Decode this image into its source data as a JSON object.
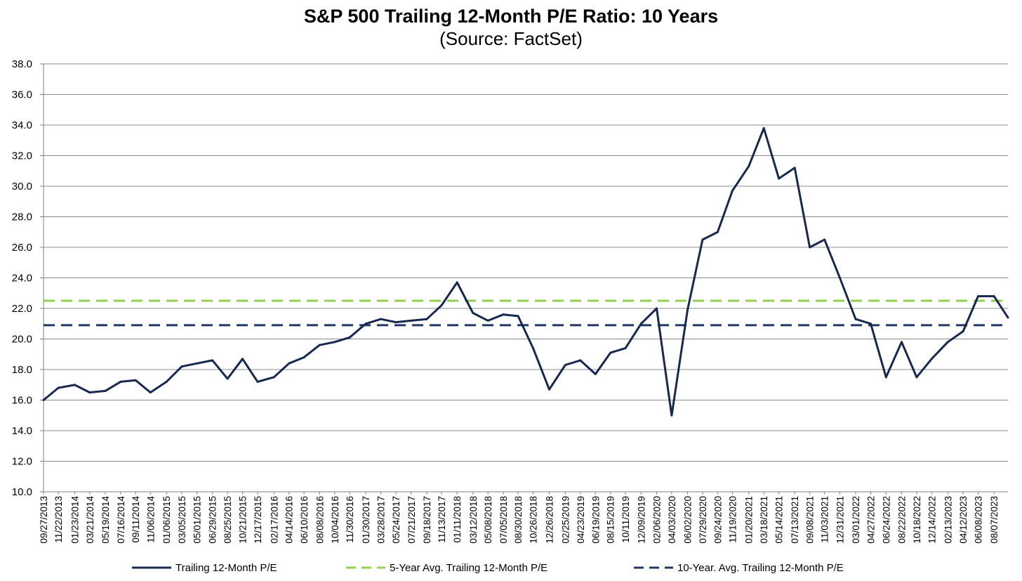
{
  "chart_data": {
    "type": "line",
    "title": "S&P 500 Trailing 12-Month P/E Ratio: 10 Years",
    "subtitle": "(Source: FactSet)",
    "ylim": [
      10,
      38
    ],
    "y_ticks": [
      "10.0",
      "12.0",
      "14.0",
      "16.0",
      "18.0",
      "20.0",
      "22.0",
      "24.0",
      "26.0",
      "28.0",
      "30.0",
      "32.0",
      "34.0",
      "36.0",
      "38.0"
    ],
    "x_tick_labels": [
      "09/27/2013",
      "11/22/2013",
      "01/23/2014",
      "03/21/2014",
      "05/19/2014",
      "07/16/2014",
      "09/11/2014",
      "11/06/2014",
      "01/06/2015",
      "03/05/2015",
      "05/01/2015",
      "06/29/2015",
      "08/25/2015",
      "10/21/2015",
      "12/17/2015",
      "02/17/2016",
      "04/14/2016",
      "06/10/2016",
      "08/08/2016",
      "10/04/2016",
      "11/30/2016",
      "01/30/2017",
      "03/28/2017",
      "05/24/2017",
      "07/21/2017",
      "09/18/2017",
      "11/13/2017",
      "01/11/2018",
      "03/12/2018",
      "05/08/2018",
      "07/05/2018",
      "08/30/2018",
      "10/26/2018",
      "12/26/2018",
      "02/25/2019",
      "04/23/2019",
      "06/19/2019",
      "08/15/2019",
      "10/11/2019",
      "12/09/2019",
      "02/06/2020",
      "04/03/2020",
      "06/02/2020",
      "07/29/2020",
      "09/24/2020",
      "11/19/2020",
      "01/20/2021",
      "03/18/2021",
      "05/14/2021",
      "07/13/2021",
      "09/08/2021",
      "11/03/2021",
      "12/31/2021",
      "03/01/2022",
      "04/27/2022",
      "06/24/2022",
      "08/22/2022",
      "10/18/2022",
      "12/14/2022",
      "02/13/2023",
      "04/12/2023",
      "06/08/2023",
      "08/07/2023"
    ],
    "grid": true,
    "legend_position": "bottom",
    "series": [
      {
        "name": "Trailing 12-Month P/E",
        "style": "solid",
        "color": "#17294f",
        "x": [
          "09/27/2013",
          "11/22/2013",
          "01/23/2014",
          "03/21/2014",
          "05/19/2014",
          "07/16/2014",
          "09/11/2014",
          "11/06/2014",
          "01/06/2015",
          "03/05/2015",
          "05/01/2015",
          "06/29/2015",
          "08/25/2015",
          "10/21/2015",
          "12/17/2015",
          "02/17/2016",
          "04/14/2016",
          "06/10/2016",
          "08/08/2016",
          "10/04/2016",
          "11/30/2016",
          "01/30/2017",
          "03/28/2017",
          "05/24/2017",
          "07/21/2017",
          "09/18/2017",
          "11/13/2017",
          "01/11/2018",
          "03/12/2018",
          "05/08/2018",
          "07/05/2018",
          "08/30/2018",
          "10/26/2018",
          "12/26/2018",
          "02/25/2019",
          "04/23/2019",
          "06/19/2019",
          "08/15/2019",
          "10/11/2019",
          "12/09/2019",
          "02/06/2020",
          "04/03/2020",
          "06/02/2020",
          "07/29/2020",
          "09/24/2020",
          "11/19/2020",
          "01/20/2021",
          "03/18/2021",
          "05/14/2021",
          "07/13/2021",
          "09/08/2021",
          "11/03/2021",
          "12/31/2021",
          "03/01/2022",
          "04/27/2022",
          "06/24/2022",
          "08/22/2022",
          "10/18/2022",
          "12/14/2022",
          "02/13/2023",
          "04/12/2023",
          "06/08/2023",
          "08/07/2023",
          "09/29/2023"
        ],
        "values": [
          16.0,
          16.8,
          17.0,
          16.5,
          16.6,
          17.2,
          17.3,
          16.5,
          17.2,
          18.2,
          18.4,
          18.6,
          17.4,
          18.7,
          17.2,
          17.5,
          18.4,
          18.8,
          19.6,
          19.8,
          20.1,
          21.0,
          21.3,
          21.1,
          21.2,
          21.3,
          22.2,
          23.7,
          21.7,
          21.2,
          21.6,
          21.5,
          19.4,
          16.7,
          18.3,
          18.6,
          17.7,
          19.1,
          19.4,
          21.0,
          22.0,
          15.0,
          21.9,
          26.5,
          27.0,
          29.7,
          31.3,
          33.8,
          30.5,
          31.2,
          26.0,
          26.5,
          24.0,
          21.3,
          21.0,
          17.5,
          19.8,
          17.5,
          18.7,
          19.8,
          20.5,
          22.8,
          22.8,
          21.4
        ]
      },
      {
        "name": "5-Year Avg. Trailing 12-Month P/E",
        "style": "dashed",
        "color": "#92d050",
        "constant": 22.5
      },
      {
        "name": "10-Year. Avg. Trailing 12-Month P/E",
        "style": "dashed",
        "color": "#1f3864",
        "constant": 20.9
      }
    ]
  }
}
